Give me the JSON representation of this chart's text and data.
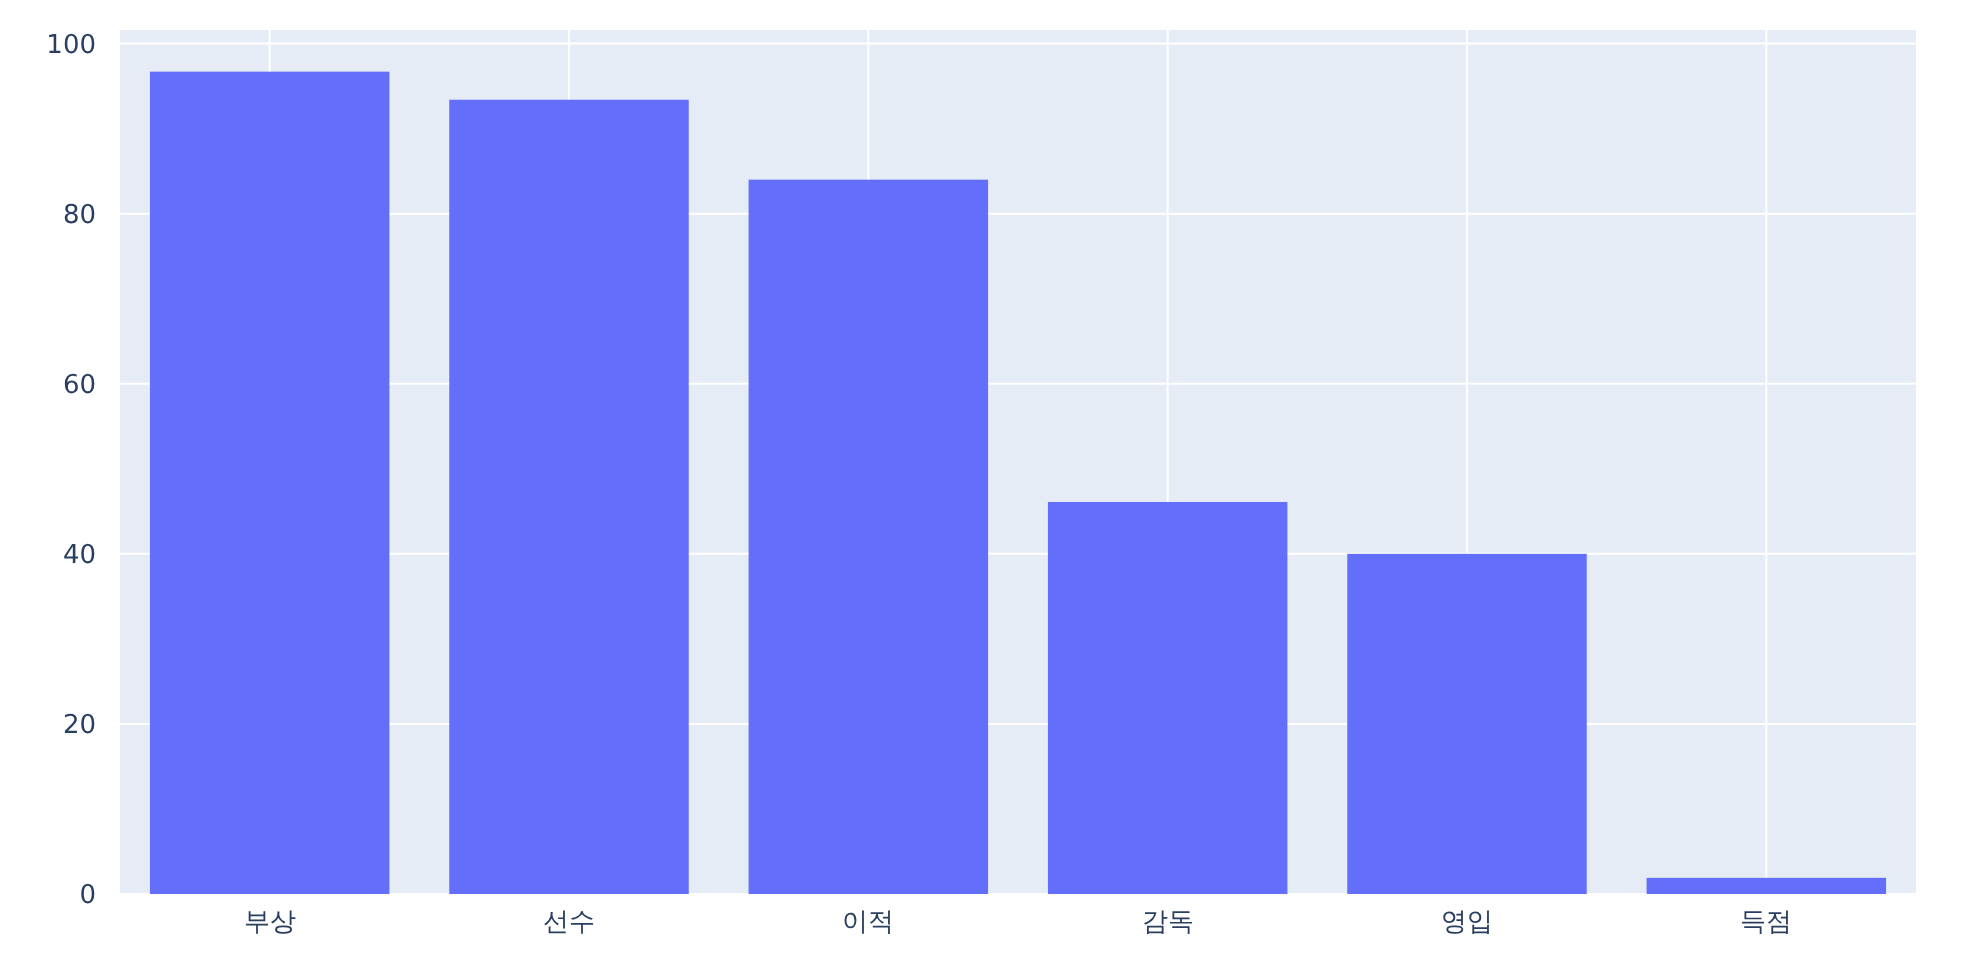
{
  "chart_data": {
    "type": "bar",
    "categories": [
      "부상",
      "선수",
      "이적",
      "감독",
      "영입",
      "득점"
    ],
    "values": [
      96.7,
      93.4,
      84.0,
      46.1,
      40.0,
      1.9
    ],
    "color": "#636efa",
    "ylim": [
      0,
      101.6
    ],
    "yticks": [
      0,
      20,
      40,
      60,
      80,
      100
    ],
    "grid": true
  }
}
